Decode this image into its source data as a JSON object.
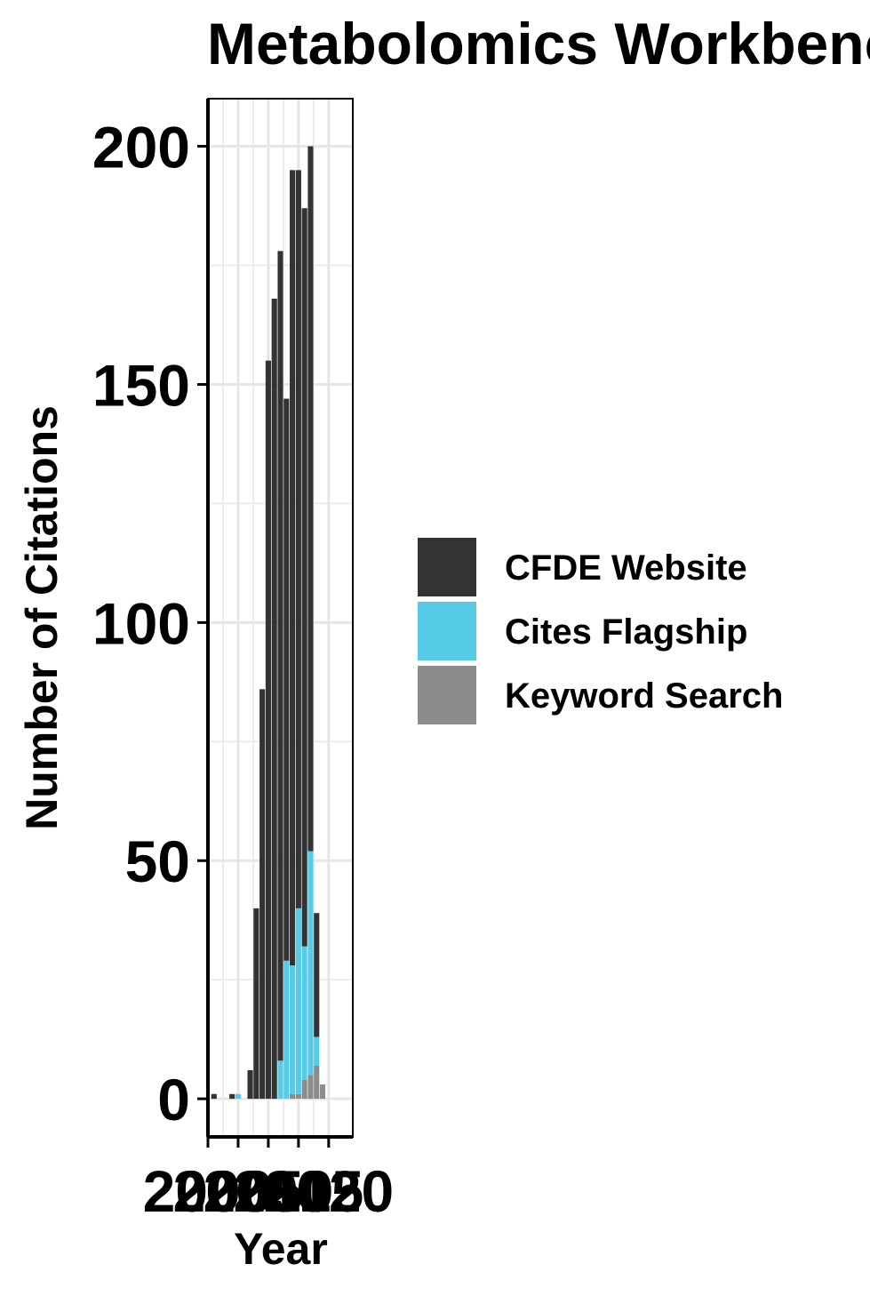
{
  "chart_data": {
    "type": "bar",
    "stacked": true,
    "title": "Metabolomics Workbench",
    "xlabel": "Year",
    "ylabel": "Number of Citations",
    "xlim": [
      2000,
      2024
    ],
    "ylim": [
      -8,
      210
    ],
    "x_ticks": [
      2000,
      2005,
      2010,
      2015,
      2020
    ],
    "y_ticks": [
      0,
      50,
      100,
      150,
      200
    ],
    "grid": true,
    "legend_position": "right",
    "x": [
      2001,
      2004,
      2005,
      2007,
      2008,
      2009,
      2010,
      2011,
      2012,
      2013,
      2014,
      2015,
      2016,
      2017,
      2018,
      2019,
      2020
    ],
    "series": [
      {
        "name": "Keyword Search",
        "color": "#8c8c8c",
        "values": [
          0,
          0,
          0,
          0,
          0,
          0,
          0,
          0,
          0,
          0,
          1,
          1,
          4,
          5,
          7,
          3,
          0
        ]
      },
      {
        "name": "Cites Flagship",
        "color": "#55cbe8",
        "values": [
          0,
          0,
          1,
          0,
          0,
          0,
          0,
          0,
          8,
          29,
          27,
          39,
          28,
          47,
          6,
          0,
          0
        ]
      },
      {
        "name": "CFDE Website",
        "color": "#333333",
        "values": [
          1,
          1,
          0,
          6,
          40,
          86,
          155,
          168,
          170,
          118,
          167,
          155,
          155,
          148,
          26,
          0,
          0
        ]
      }
    ],
    "legend": [
      "CFDE Website",
      "Cites Flagship",
      "Keyword Search"
    ]
  }
}
